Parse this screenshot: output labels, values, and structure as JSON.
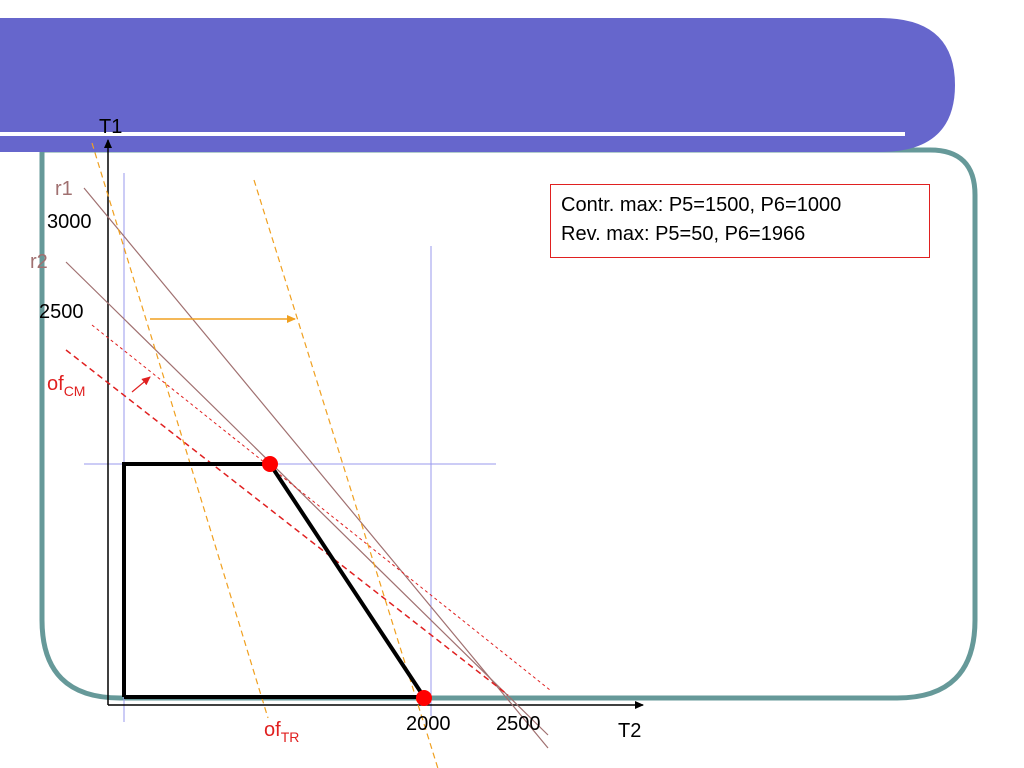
{
  "axes": {
    "y_label": "T1",
    "x_label": "T2",
    "y_ticks": [
      "3000",
      "2500"
    ],
    "x_ticks": [
      "2000",
      "2500"
    ]
  },
  "constraints": {
    "r1": "r1",
    "r2": "r2"
  },
  "objectives": {
    "cm": {
      "base": "of",
      "sub": "CM"
    },
    "tr": {
      "base": "of",
      "sub": "TR"
    }
  },
  "info": {
    "line1": "Contr. max: P5=1500, P6=1000",
    "line2": "Rev. max: P5=50, P6=1966"
  },
  "colors": {
    "header": "#6666cc",
    "frame": "#669999",
    "feasible_region": "#000000",
    "constraint_lines": "#a07070",
    "of_cm_lines": "#e02020",
    "of_tr_lines": "#f0a020",
    "optimum_points": "#ff0000",
    "guide_lines": "#9999ee",
    "shift_arrow": "#f0a020"
  }
}
